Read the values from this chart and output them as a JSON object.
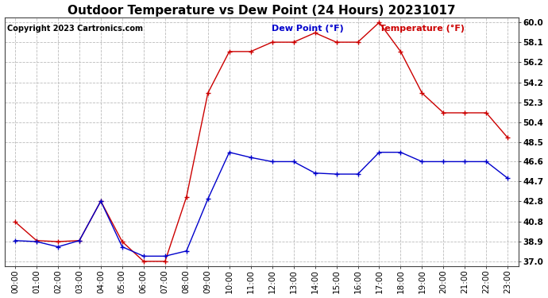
{
  "title": "Outdoor Temperature vs Dew Point (24 Hours) 20231017",
  "copyright": "Copyright 2023 Cartronics.com",
  "legend_dew": "Dew Point (°F)",
  "legend_temp": "Temperature (°F)",
  "hours": [
    "00:00",
    "01:00",
    "02:00",
    "03:00",
    "04:00",
    "05:00",
    "06:00",
    "07:00",
    "08:00",
    "09:00",
    "10:00",
    "11:00",
    "12:00",
    "13:00",
    "14:00",
    "15:00",
    "16:00",
    "17:00",
    "18:00",
    "19:00",
    "20:00",
    "21:00",
    "22:00",
    "23:00"
  ],
  "temperature": [
    40.8,
    39.0,
    38.9,
    39.0,
    42.8,
    38.9,
    37.0,
    37.0,
    43.2,
    53.2,
    57.2,
    57.2,
    58.1,
    58.1,
    59.0,
    58.1,
    58.1,
    60.0,
    57.2,
    53.2,
    51.3,
    51.3,
    51.3,
    48.9
  ],
  "dew_point": [
    39.0,
    38.9,
    38.4,
    39.0,
    42.8,
    38.4,
    37.5,
    37.5,
    38.0,
    43.0,
    47.5,
    47.0,
    46.6,
    46.6,
    45.5,
    45.4,
    45.4,
    47.5,
    47.5,
    46.6,
    46.6,
    46.6,
    46.6,
    45.0
  ],
  "yticks": [
    37.0,
    38.9,
    40.8,
    42.8,
    44.7,
    46.6,
    48.5,
    50.4,
    52.3,
    54.2,
    56.2,
    58.1,
    60.0
  ],
  "ylim_min": 36.5,
  "ylim_max": 60.5,
  "temp_color": "#cc0000",
  "dew_color": "#0000cc",
  "grid_color": "#bbbbbb",
  "bg_color": "#ffffff",
  "title_fontsize": 11,
  "tick_fontsize": 7.5,
  "copyright_fontsize": 7
}
